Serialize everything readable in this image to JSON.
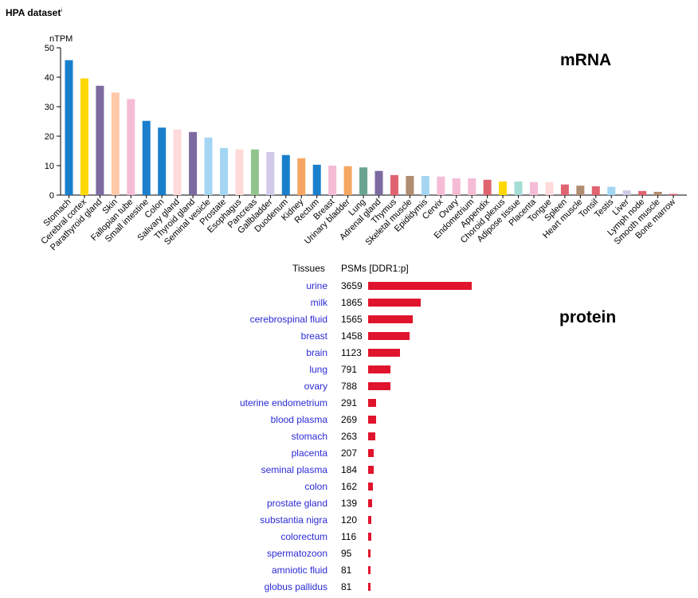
{
  "header": {
    "title": "HPA dataset",
    "superscript": "i"
  },
  "mrna": {
    "label": "mRNA",
    "chart_data": {
      "type": "bar",
      "ylabel": "nTPM",
      "ylim": [
        0,
        50
      ],
      "yticks": [
        0,
        10,
        20,
        30,
        40,
        50
      ],
      "categories": [
        "Stomach",
        "Cerebral cortex",
        "Parathyroid gland",
        "Skin",
        "Fallopian tube",
        "Small intestine",
        "Colon",
        "Salivary gland",
        "Thyroid gland",
        "Seminal vesicle",
        "Prostate",
        "Esophagus",
        "Pancreas",
        "Gallbladder",
        "Duodenum",
        "Kidney",
        "Rectum",
        "Breast",
        "Urinary bladder",
        "Lung",
        "Adrenal gland",
        "Thymus",
        "Skeletal muscle",
        "Epididymis",
        "Cervix",
        "Ovary",
        "Endometrium",
        "Appendix",
        "Choroid plexus",
        "Adipose tissue",
        "Placenta",
        "Tongue",
        "Spleen",
        "Heart muscle",
        "Tonsil",
        "Testis",
        "Liver",
        "Lymph node",
        "Smooth muscle",
        "Bone marrow"
      ],
      "values": [
        45.8,
        39.6,
        37.1,
        34.8,
        32.6,
        25.2,
        22.9,
        22.3,
        21.4,
        19.5,
        16.0,
        15.5,
        15.5,
        14.6,
        13.6,
        12.5,
        10.3,
        10.0,
        9.8,
        9.4,
        8.2,
        6.8,
        6.5,
        6.5,
        6.3,
        5.7,
        5.7,
        5.2,
        4.6,
        4.6,
        4.4,
        4.4,
        3.6,
        3.2,
        3.0,
        2.8,
        1.6,
        1.4,
        1.1,
        0.4
      ],
      "colors": [
        "#1a7fcb",
        "#ffd800",
        "#7c6aa0",
        "#ffc8a8",
        "#f5bcd6",
        "#1a7fcb",
        "#1a7fcb",
        "#ffdada",
        "#7c6aa0",
        "#a4d6f4",
        "#a4d6f4",
        "#ffdada",
        "#93c48f",
        "#d2c8e8",
        "#1a7fcb",
        "#f6a660",
        "#1a7fcb",
        "#f5bcd6",
        "#f6a660",
        "#6aa490",
        "#7c6aa0",
        "#e06470",
        "#b08c70",
        "#a4d6f4",
        "#f5bcd6",
        "#f5bcd6",
        "#f5bcd6",
        "#e06470",
        "#ffd800",
        "#a4dcd6",
        "#f5bcd6",
        "#ffdada",
        "#e06470",
        "#b08c70",
        "#e06470",
        "#a4d6f4",
        "#d2c8e8",
        "#e06470",
        "#b08c70",
        "#e06470"
      ]
    }
  },
  "protein": {
    "label": "protein",
    "header_tissues": "Tissues",
    "header_psms": "PSMs",
    "header_psms_sub": " [DDR1:p]",
    "bar_color": "#e0142d",
    "chart_data": {
      "type": "bar",
      "orientation": "horizontal",
      "categories": [
        "urine",
        "milk",
        "cerebrospinal fluid",
        "breast",
        "brain",
        "lung",
        "ovary",
        "uterine endometrium",
        "blood plasma",
        "stomach",
        "placenta",
        "seminal plasma",
        "colon",
        "prostate gland",
        "substantia nigra",
        "colorectum",
        "spermatozoon",
        "amniotic fluid",
        "globus pallidus"
      ],
      "values": [
        3659,
        1865,
        1565,
        1458,
        1123,
        791,
        788,
        291,
        269,
        263,
        207,
        184,
        162,
        139,
        120,
        116,
        95,
        81,
        81
      ]
    }
  }
}
